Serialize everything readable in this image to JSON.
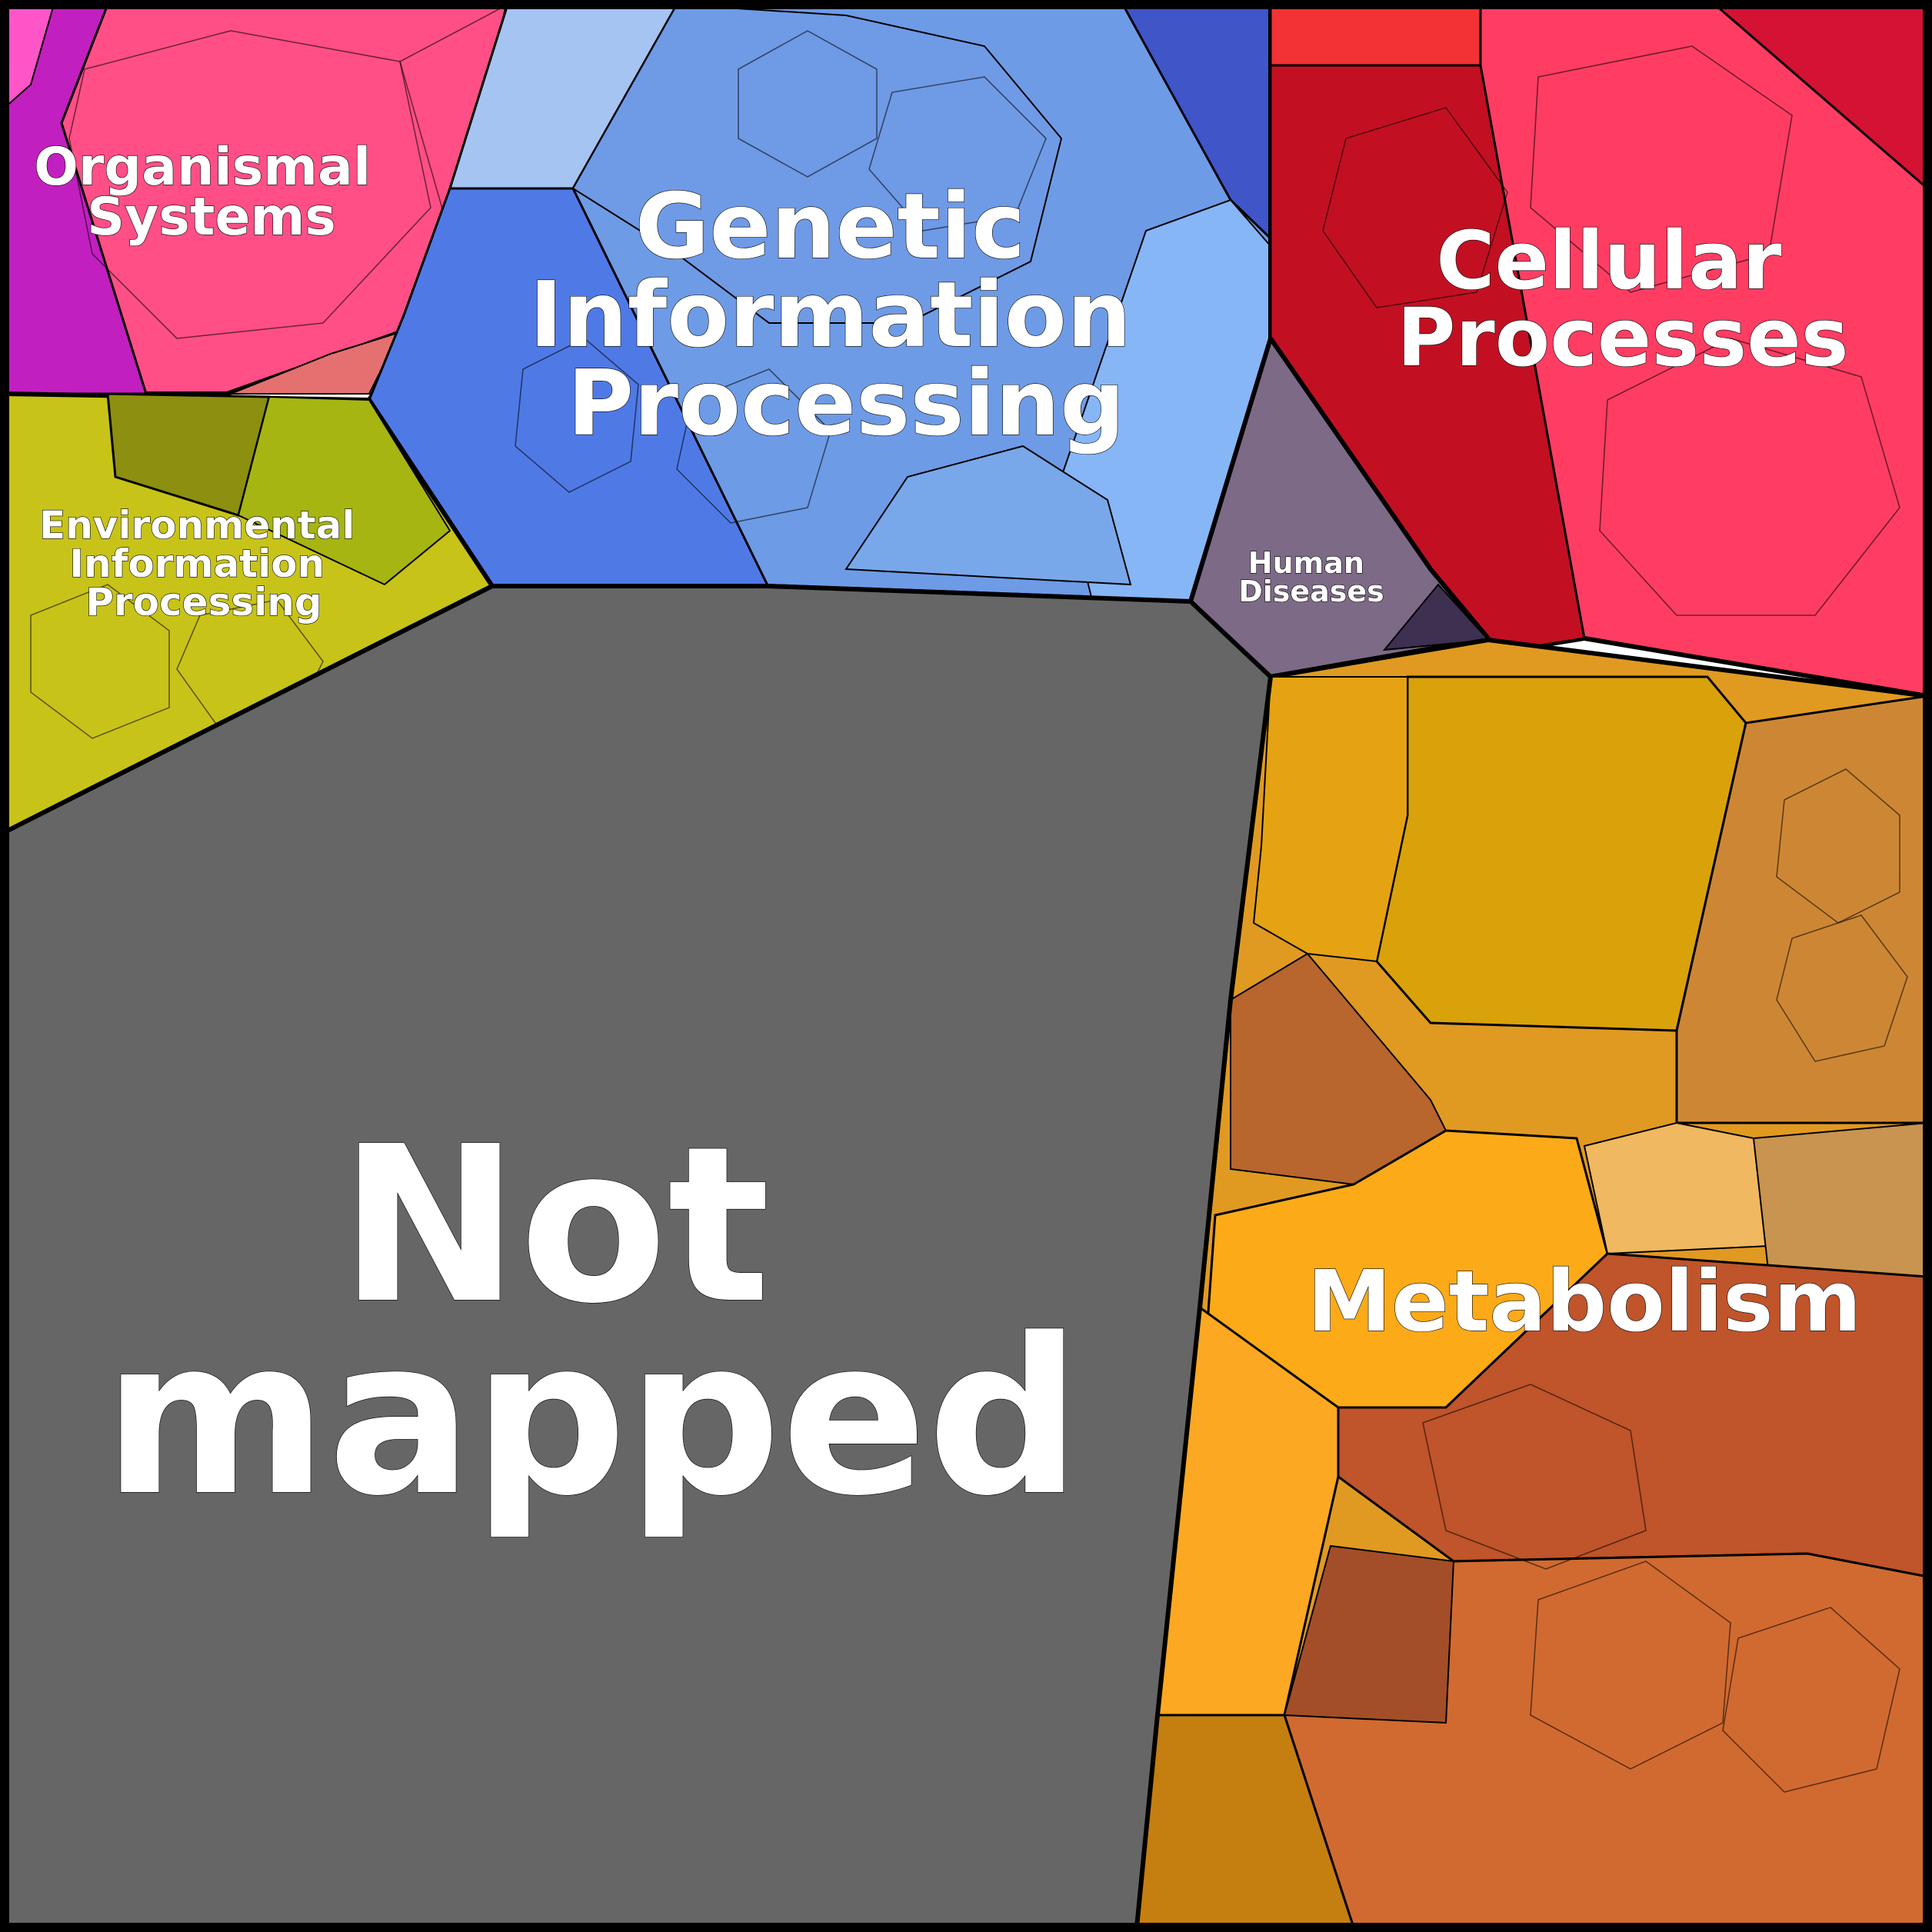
{
  "regions": [
    {
      "id": "organismal-systems",
      "label": [
        "Organismal",
        "Systems"
      ],
      "color": "#ff4f86"
    },
    {
      "id": "genetic-information-processing",
      "label": [
        "Genetic",
        "Information",
        "Processing"
      ],
      "color": "#6e9be6"
    },
    {
      "id": "cellular-processes",
      "label": [
        "Cellular",
        "Processes"
      ],
      "color": "#ff3d63"
    },
    {
      "id": "environmental-information-processing",
      "label": [
        "Environmental",
        "Information",
        "Processing"
      ],
      "color": "#c8c319"
    },
    {
      "id": "human-diseases",
      "label": [
        "Human",
        "Diseases"
      ],
      "color": "#7d6a86"
    },
    {
      "id": "not-mapped",
      "label": [
        "Not",
        "mapped"
      ],
      "color": "#666666"
    },
    {
      "id": "metabolism",
      "label": [
        "Metabolism"
      ],
      "color": "#e09a22"
    }
  ]
}
